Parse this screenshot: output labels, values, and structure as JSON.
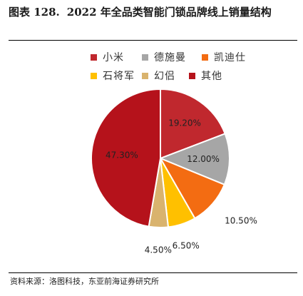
{
  "header": {
    "figure_number": "图表 128.",
    "title": "2022 年全品类智能门锁品牌线上销量结构"
  },
  "source": "资料来源：洛图科技，东亚前海证券研究所",
  "chart_data": {
    "type": "pie",
    "title": "2022 年全品类智能门锁品牌线上销量结构",
    "unit": "%",
    "categories": [
      "小米",
      "德施曼",
      "凯迪仕",
      "石将军",
      "幻侣",
      "其他"
    ],
    "values": [
      19.2,
      12.0,
      10.5,
      6.5,
      4.5,
      47.3
    ],
    "labels": [
      "19.20%",
      "12.00%",
      "10.50%",
      "6.50%",
      "4.50%",
      "47.30%"
    ],
    "colors": [
      "#C0282E",
      "#A6A6A6",
      "#F36C12",
      "#FFC000",
      "#D9B36E",
      "#B5121B"
    ],
    "start_angle_deg": 0,
    "direction": "clockwise",
    "legend_position": "top"
  }
}
